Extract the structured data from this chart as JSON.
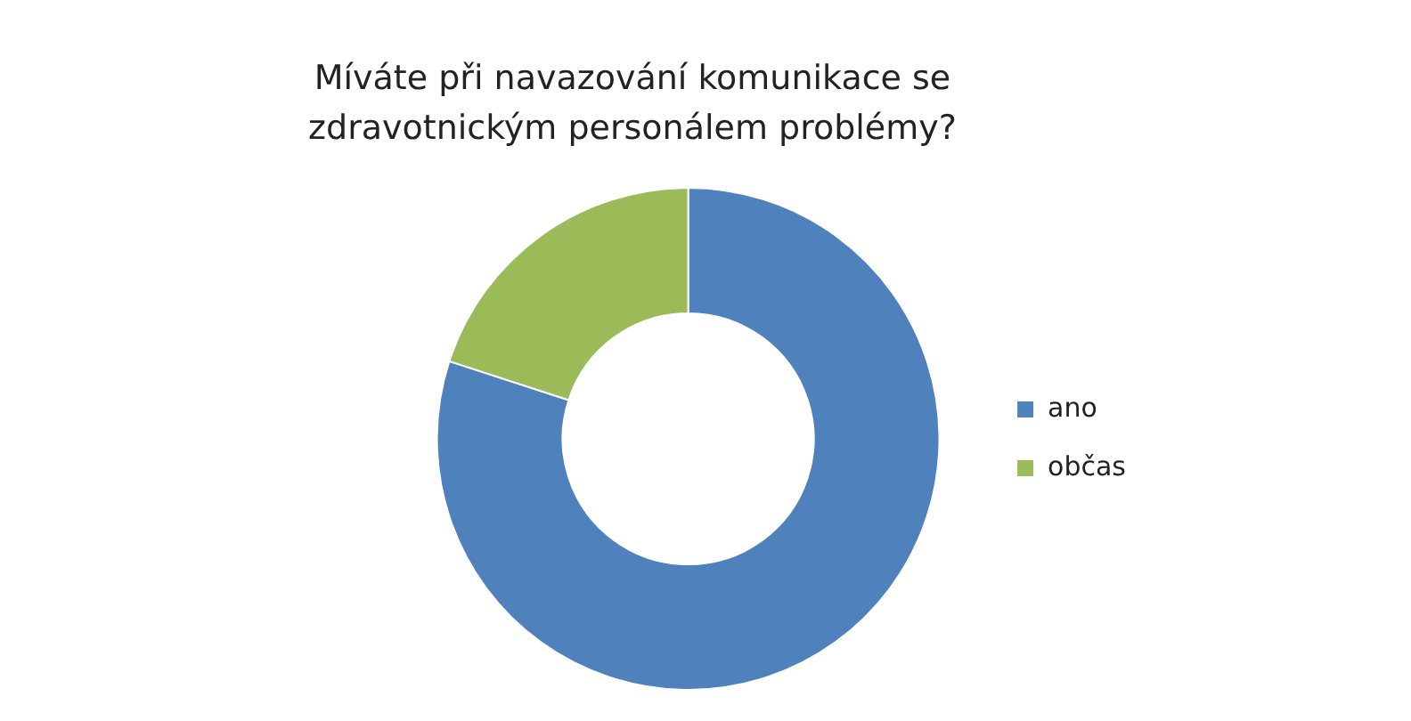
{
  "chart_data": {
    "type": "donut",
    "title": "Míváte při navazování komunikace se zdravotnickým personálem problémy?",
    "categories": [
      "ano",
      "občas"
    ],
    "values": [
      80,
      20
    ],
    "colors": [
      "#4f81bd",
      "#9bbb59"
    ],
    "legend": "right"
  }
}
